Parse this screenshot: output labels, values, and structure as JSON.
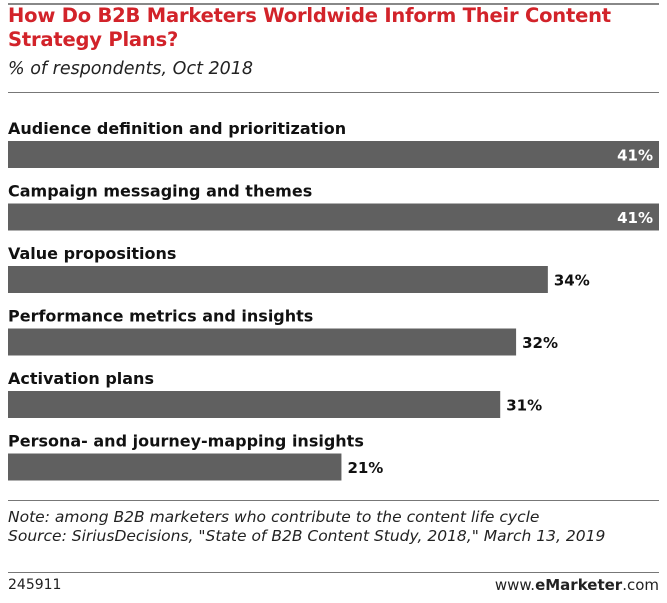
{
  "header": {
    "title": "How Do B2B Marketers Worldwide Inform Their Content Strategy Plans?",
    "subtitle": "% of respondents, Oct 2018"
  },
  "chart_data": {
    "type": "bar",
    "orientation": "horizontal",
    "title": "How Do B2B Marketers Worldwide Inform Their Content Strategy Plans?",
    "subtitle": "% of respondents, Oct 2018",
    "categories": [
      "Audience definition and prioritization",
      "Campaign messaging and themes",
      "Value propositions",
      "Performance metrics and insights",
      "Activation plans",
      "Persona- and journey-mapping insights"
    ],
    "values": [
      41,
      41,
      34,
      32,
      31,
      21
    ],
    "value_labels": [
      "41%",
      "41%",
      "34%",
      "32%",
      "31%",
      "21%"
    ],
    "xlim": [
      0,
      41
    ],
    "grid": false,
    "legend": "none",
    "bar_color": "#606060"
  },
  "footer": {
    "note_line1": "Note: among B2B marketers who contribute to the content life cycle",
    "note_line2": "Source: SiriusDecisions, \"State of B2B Content Study, 2018,\" March 13, 2019",
    "chart_id": "245911",
    "brand_prefix": "www.",
    "brand_name": "eMarketer",
    "brand_suffix": ".com"
  },
  "colors": {
    "title": "#d2232a",
    "bar": "#606060",
    "value_inside": "#ffffff",
    "value_outside": "#111111"
  }
}
